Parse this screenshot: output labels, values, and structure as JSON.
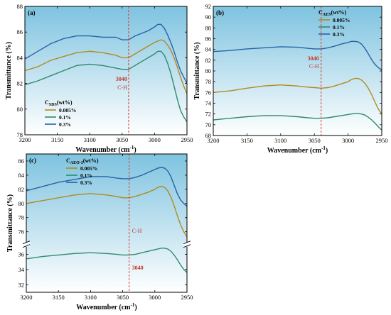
{
  "chart_data": [
    {
      "id": "a",
      "type": "line",
      "panel_label": "(a)",
      "xlabel": "Wavenumber (cm",
      "xlabel_sup": "-1",
      "xlabel_tail": ")",
      "ylabel": "Transmittance (%)",
      "xlim": [
        3200,
        2950
      ],
      "ylim": [
        78,
        88
      ],
      "xticks": [
        "3200",
        "3150",
        "3100",
        "3050",
        "3000",
        "2950"
      ],
      "yticks": [
        "78",
        "80",
        "82",
        "84",
        "86",
        "88"
      ],
      "legend_title_main": "C",
      "legend_title_sub": "SDS",
      "legend_title_tail": "(wt%)",
      "legend_position": "bottom-left",
      "annotation_number": "3040",
      "annotation_bond": "C-H",
      "annotation_x": 3040,
      "series": [
        {
          "name": "0.005%",
          "color": "#B08A1E",
          "x": [
            3200,
            3180,
            3160,
            3140,
            3120,
            3100,
            3080,
            3060,
            3050,
            3040,
            3030,
            3020,
            3010,
            3000,
            2995,
            2990,
            2985,
            2980,
            2975,
            2970,
            2965,
            2960,
            2955,
            2950
          ],
          "y": [
            83.0,
            83.3,
            83.8,
            84.1,
            84.4,
            84.5,
            84.4,
            84.2,
            84.0,
            84.0,
            84.3,
            84.6,
            84.9,
            85.2,
            85.3,
            85.4,
            85.3,
            85.0,
            84.6,
            84.0,
            83.3,
            82.5,
            81.8,
            81.2
          ]
        },
        {
          "name": "0.1%",
          "color": "#2E8B6A",
          "x": [
            3200,
            3180,
            3160,
            3140,
            3120,
            3100,
            3080,
            3060,
            3050,
            3040,
            3030,
            3020,
            3010,
            3000,
            2995,
            2990,
            2985,
            2980,
            2975,
            2970,
            2965,
            2960,
            2955,
            2950
          ],
          "y": [
            81.9,
            82.2,
            82.6,
            83.0,
            83.4,
            83.5,
            83.4,
            83.2,
            83.1,
            83.1,
            83.4,
            83.7,
            84.0,
            84.3,
            84.5,
            84.5,
            84.2,
            83.6,
            82.8,
            81.8,
            80.8,
            79.9,
            79.4,
            79.0
          ]
        },
        {
          "name": "0.3%",
          "color": "#2463A6",
          "x": [
            3200,
            3180,
            3160,
            3140,
            3120,
            3100,
            3080,
            3060,
            3050,
            3040,
            3030,
            3020,
            3010,
            3000,
            2995,
            2990,
            2985,
            2980,
            2975,
            2970,
            2965,
            2960,
            2955,
            2950
          ],
          "y": [
            83.9,
            84.5,
            85.1,
            85.5,
            85.7,
            85.7,
            85.6,
            85.6,
            85.4,
            85.4,
            85.7,
            85.9,
            86.1,
            86.4,
            86.6,
            86.6,
            86.3,
            85.8,
            85.2,
            84.5,
            83.7,
            83.0,
            82.5,
            82.0
          ]
        }
      ]
    },
    {
      "id": "b",
      "type": "line",
      "panel_label": "(b)",
      "xlabel": "Wavenumber (cm",
      "xlabel_sup": "-1",
      "xlabel_tail": ")",
      "ylabel": "Transmittance (%)",
      "xlim": [
        3200,
        2950
      ],
      "ylim": [
        68,
        92
      ],
      "xticks": [
        "3200",
        "3150",
        "3100",
        "3050",
        "3000",
        "2950"
      ],
      "yticks": [
        "68",
        "70",
        "72",
        "74",
        "76",
        "78",
        "80",
        "82",
        "84",
        "86",
        "88",
        "90",
        "92"
      ],
      "legend_title_main": "C",
      "legend_title_sub": "AES",
      "legend_title_tail": "(wt%)",
      "legend_position": "top-right",
      "annotation_number": "3040",
      "annotation_bond": "C-H",
      "annotation_x": 3040,
      "series": [
        {
          "name": "0.005%",
          "color": "#B08A1E",
          "x": [
            3200,
            3175,
            3150,
            3125,
            3100,
            3075,
            3060,
            3050,
            3040,
            3030,
            3020,
            3010,
            3000,
            2995,
            2990,
            2985,
            2980,
            2975,
            2970,
            2965,
            2960,
            2955,
            2950
          ],
          "y": [
            76.0,
            76.3,
            76.8,
            77.2,
            77.4,
            77.2,
            77.0,
            76.9,
            76.8,
            76.9,
            77.2,
            77.6,
            78.0,
            78.4,
            78.6,
            78.6,
            78.3,
            77.7,
            76.8,
            75.6,
            74.2,
            72.9,
            72.0
          ]
        },
        {
          "name": "0.1%",
          "color": "#2E8B6A",
          "x": [
            3200,
            3175,
            3150,
            3125,
            3100,
            3075,
            3060,
            3050,
            3040,
            3030,
            3020,
            3010,
            3000,
            2995,
            2990,
            2985,
            2980,
            2975,
            2970,
            2965,
            2960,
            2955,
            2950
          ],
          "y": [
            70.9,
            71.2,
            71.5,
            71.7,
            71.7,
            71.5,
            71.3,
            71.2,
            71.2,
            71.3,
            71.5,
            71.7,
            71.9,
            72.0,
            72.1,
            72.1,
            72.0,
            71.8,
            71.4,
            70.9,
            70.3,
            69.6,
            69.0
          ]
        },
        {
          "name": "0.3%",
          "color": "#2463A6",
          "x": [
            3200,
            3175,
            3150,
            3125,
            3100,
            3075,
            3060,
            3050,
            3040,
            3030,
            3020,
            3010,
            3000,
            2995,
            2990,
            2985,
            2980,
            2975,
            2970,
            2965,
            2960,
            2955,
            2950
          ],
          "y": [
            83.6,
            83.8,
            84.1,
            84.3,
            84.5,
            84.4,
            84.2,
            84.1,
            84.1,
            84.3,
            84.6,
            85.0,
            85.3,
            85.5,
            85.5,
            85.4,
            85.0,
            84.2,
            83.2,
            82.1,
            81.2,
            80.6,
            80.2
          ]
        }
      ]
    },
    {
      "id": "c",
      "type": "line",
      "panel_label": "(c)",
      "xlabel": "Wavenumber (cm",
      "xlabel_sup": "-1",
      "xlabel_tail": ")",
      "ylabel": "Transmittance (%)",
      "xlim": [
        3200,
        2950
      ],
      "ylim_lower": [
        31,
        37
      ],
      "ylim_upper": [
        74.5,
        87
      ],
      "axis_break": true,
      "xticks": [
        "3200",
        "3150",
        "3100",
        "3050",
        "3000",
        "2950"
      ],
      "yticks_lower": [
        "32",
        "34",
        "36"
      ],
      "yticks_upper": [
        "76",
        "78",
        "80",
        "82",
        "84",
        "86"
      ],
      "legend_title_main": "C",
      "legend_title_sub": "AEO-3",
      "legend_title_tail": "(wt%)",
      "legend_position": "top-left",
      "annotation_number": "3040",
      "annotation_bond": "C-H",
      "annotation_x": 3040,
      "series": [
        {
          "name": "0.005%",
          "color": "#B08A1E",
          "segment": "upper",
          "x": [
            3200,
            3175,
            3150,
            3125,
            3100,
            3075,
            3060,
            3050,
            3040,
            3030,
            3020,
            3010,
            3000,
            2995,
            2990,
            2985,
            2980,
            2975,
            2970,
            2965,
            2960,
            2955,
            2950
          ],
          "y": [
            80.0,
            80.4,
            80.8,
            81.2,
            81.4,
            81.2,
            81.0,
            80.8,
            80.8,
            81.0,
            81.3,
            81.6,
            82.0,
            82.3,
            82.4,
            82.3,
            81.8,
            80.9,
            79.7,
            78.3,
            77.0,
            76.0,
            75.3
          ]
        },
        {
          "name": "0.1%",
          "color": "#2E8B6A",
          "segment": "lower",
          "x": [
            3200,
            3175,
            3150,
            3125,
            3100,
            3075,
            3060,
            3050,
            3040,
            3030,
            3020,
            3010,
            3000,
            2995,
            2990,
            2985,
            2980,
            2975,
            2970,
            2965,
            2960,
            2955,
            2950
          ],
          "y": [
            35.4,
            35.7,
            35.9,
            36.1,
            36.2,
            36.1,
            36.0,
            35.9,
            35.9,
            36.0,
            36.2,
            36.4,
            36.6,
            36.7,
            36.8,
            36.8,
            36.7,
            36.4,
            35.9,
            35.3,
            34.6,
            34.0,
            33.6
          ]
        },
        {
          "name": "0.3%",
          "color": "#2463A6",
          "segment": "upper",
          "x": [
            3200,
            3175,
            3150,
            3125,
            3100,
            3075,
            3060,
            3050,
            3040,
            3030,
            3020,
            3010,
            3000,
            2995,
            2990,
            2985,
            2980,
            2975,
            2970,
            2965,
            2960,
            2955,
            2950
          ],
          "y": [
            81.8,
            82.4,
            83.0,
            83.4,
            83.8,
            83.8,
            83.6,
            83.5,
            83.5,
            83.7,
            84.0,
            84.4,
            84.8,
            85.0,
            85.1,
            85.0,
            84.6,
            83.8,
            82.6,
            81.4,
            80.5,
            80.0,
            79.6
          ]
        }
      ]
    }
  ]
}
